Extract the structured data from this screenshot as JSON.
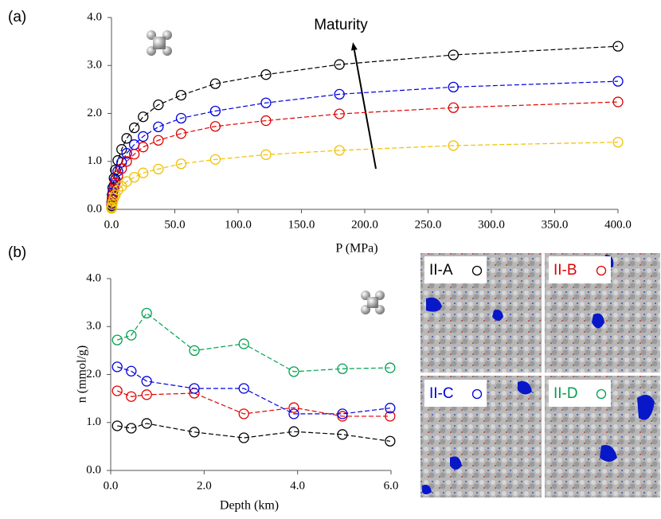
{
  "chart_data": [
    {
      "type": "line",
      "panel_label": "(a)",
      "xlabel": "P (MPa)",
      "annotation": "Maturity",
      "x": [
        0.05,
        0.1,
        0.2,
        0.5,
        1,
        2,
        3,
        5,
        8,
        12,
        18,
        25,
        37,
        55,
        82,
        122,
        180,
        270,
        400
      ],
      "xlim": [
        0,
        400
      ],
      "xticks": [
        {
          "value": 0,
          "label": "0.0"
        },
        {
          "value": 50,
          "label": "50.0"
        },
        {
          "value": 100,
          "label": "100.0"
        },
        {
          "value": 150,
          "label": "150.0"
        },
        {
          "value": 200,
          "label": "200.0"
        },
        {
          "value": 250,
          "label": "250.0"
        },
        {
          "value": 300,
          "label": "300.0"
        },
        {
          "value": 350,
          "label": "350.0"
        },
        {
          "value": 400,
          "label": "400.0"
        }
      ],
      "ylim": [
        0,
        4
      ],
      "yticks": [
        {
          "value": 0,
          "label": "0.0"
        },
        {
          "value": 1,
          "label": "1.0"
        },
        {
          "value": 2,
          "label": "2.0"
        },
        {
          "value": 3,
          "label": "3.0"
        },
        {
          "value": 4,
          "label": "4.0"
        }
      ],
      "series": [
        {
          "color": "#000000",
          "values": [
            0.04,
            0.08,
            0.15,
            0.3,
            0.45,
            0.65,
            0.82,
            1.02,
            1.25,
            1.48,
            1.7,
            1.93,
            2.18,
            2.38,
            2.62,
            2.81,
            3.02,
            3.22,
            3.4
          ]
        },
        {
          "color": "#0000e0",
          "values": [
            0.03,
            0.06,
            0.12,
            0.22,
            0.35,
            0.5,
            0.62,
            0.8,
            0.98,
            1.17,
            1.35,
            1.52,
            1.72,
            1.9,
            2.05,
            2.22,
            2.4,
            2.55,
            2.67
          ]
        },
        {
          "color": "#e00000",
          "values": [
            0.03,
            0.05,
            0.1,
            0.2,
            0.3,
            0.43,
            0.55,
            0.7,
            0.85,
            1.0,
            1.15,
            1.3,
            1.44,
            1.58,
            1.73,
            1.85,
            1.99,
            2.12,
            2.24
          ]
        },
        {
          "color": "#f0c000",
          "values": [
            0.02,
            0.03,
            0.05,
            0.1,
            0.16,
            0.24,
            0.3,
            0.4,
            0.48,
            0.58,
            0.67,
            0.76,
            0.84,
            0.95,
            1.04,
            1.14,
            1.23,
            1.33,
            1.4
          ]
        }
      ]
    },
    {
      "type": "line",
      "panel_label": "(b)",
      "xlabel": "Depth (km)",
      "ylabel": "n (mmol/g)",
      "x": [
        0.14,
        0.44,
        0.77,
        1.79,
        2.85,
        3.92,
        4.96,
        5.98
      ],
      "xlim": [
        0,
        6
      ],
      "xticks": [
        {
          "value": 0,
          "label": "0.0"
        },
        {
          "value": 2,
          "label": "2.0"
        },
        {
          "value": 4,
          "label": "4.0"
        },
        {
          "value": 6,
          "label": "6.0"
        }
      ],
      "ylim": [
        0,
        4
      ],
      "yticks": [
        {
          "value": 0,
          "label": "0.0"
        },
        {
          "value": 1,
          "label": "1.0"
        },
        {
          "value": 2,
          "label": "2.0"
        },
        {
          "value": 3,
          "label": "3.0"
        },
        {
          "value": 4,
          "label": "4.0"
        }
      ],
      "series": [
        {
          "name": "II-A",
          "color": "#000000",
          "values": [
            0.93,
            0.88,
            0.98,
            0.8,
            0.68,
            0.81,
            0.75,
            0.61
          ]
        },
        {
          "name": "II-B",
          "color": "#e00000",
          "values": [
            1.66,
            1.54,
            1.58,
            1.61,
            1.18,
            1.31,
            1.13,
            1.13
          ]
        },
        {
          "name": "II-C",
          "color": "#0000e0",
          "values": [
            2.16,
            2.07,
            1.86,
            1.71,
            1.71,
            1.18,
            1.18,
            1.3
          ]
        },
        {
          "name": "II-D",
          "color": "#00a050",
          "values": [
            2.72,
            2.82,
            3.28,
            2.5,
            2.64,
            2.06,
            2.12,
            2.14
          ]
        }
      ]
    }
  ]
}
